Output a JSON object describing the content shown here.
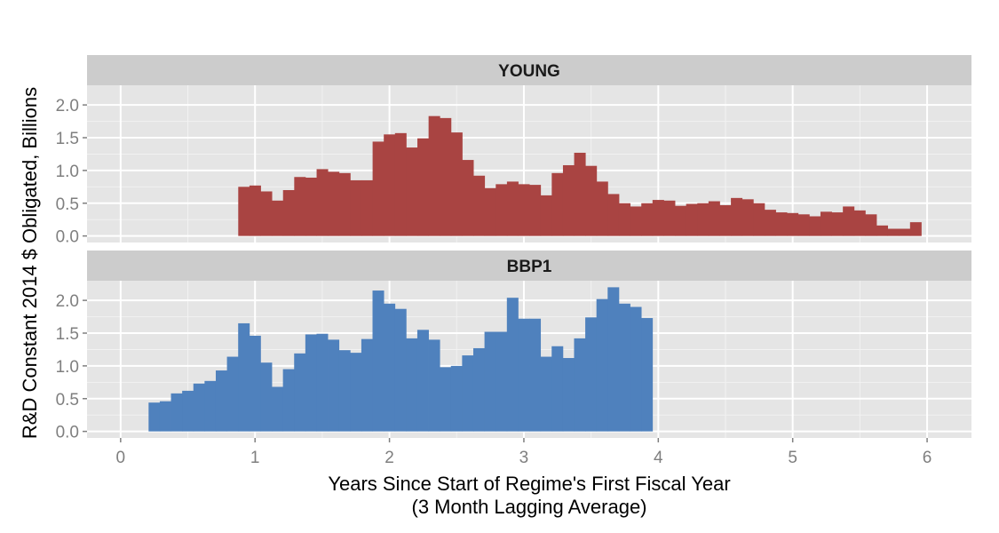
{
  "chart_data": {
    "type": "bar",
    "title": "",
    "xlabel": "Years Since Start of Regime's First Fiscal Year",
    "xlabel_line2": "(3 Month Lagging Average)",
    "ylabel": "R&D Constant 2014 $ Obligated, Billions",
    "xlim": [
      -0.25,
      6.33
    ],
    "ylim": [
      -0.1,
      2.3
    ],
    "x_ticks": [
      "0",
      "1",
      "2",
      "3",
      "4",
      "5",
      "6"
    ],
    "y_ticks": [
      "0.0",
      "0.5",
      "1.0",
      "1.5",
      "2.0"
    ],
    "bar_width": 0.0833,
    "grid": true,
    "colors": {
      "young": "#a94442",
      "bbp1": "#4f81bd",
      "panel_bg": "#e5e5e5",
      "strip_bg": "#cccccc",
      "grid": "#ffffff"
    },
    "panels": [
      {
        "name": "YOUNG",
        "x_start": 0.875,
        "values": [
          0.75,
          0.77,
          0.68,
          0.54,
          0.7,
          0.9,
          0.89,
          1.02,
          0.98,
          0.96,
          0.85,
          0.85,
          1.44,
          1.55,
          1.57,
          1.35,
          1.49,
          1.83,
          1.8,
          1.58,
          1.16,
          0.92,
          0.73,
          0.79,
          0.83,
          0.79,
          0.78,
          0.62,
          0.96,
          1.08,
          1.27,
          1.07,
          0.83,
          0.64,
          0.5,
          0.45,
          0.5,
          0.55,
          0.54,
          0.46,
          0.49,
          0.5,
          0.53,
          0.47,
          0.58,
          0.56,
          0.5,
          0.4,
          0.36,
          0.35,
          0.33,
          0.3,
          0.37,
          0.36,
          0.45,
          0.39,
          0.33,
          0.16,
          0.11,
          0.11,
          0.21
        ]
      },
      {
        "name": "BBP1",
        "x_start": 0.208,
        "values": [
          0.44,
          0.46,
          0.58,
          0.62,
          0.73,
          0.77,
          0.93,
          1.14,
          1.65,
          1.46,
          1.05,
          0.68,
          0.95,
          1.19,
          1.48,
          1.49,
          1.4,
          1.24,
          1.2,
          1.41,
          2.15,
          1.95,
          1.87,
          1.42,
          1.55,
          1.4,
          0.98,
          1.0,
          1.16,
          1.27,
          1.52,
          1.52,
          2.04,
          1.72,
          1.72,
          1.14,
          1.3,
          1.12,
          1.42,
          1.74,
          2.02,
          2.2,
          1.95,
          1.9,
          1.73
        ]
      }
    ]
  }
}
